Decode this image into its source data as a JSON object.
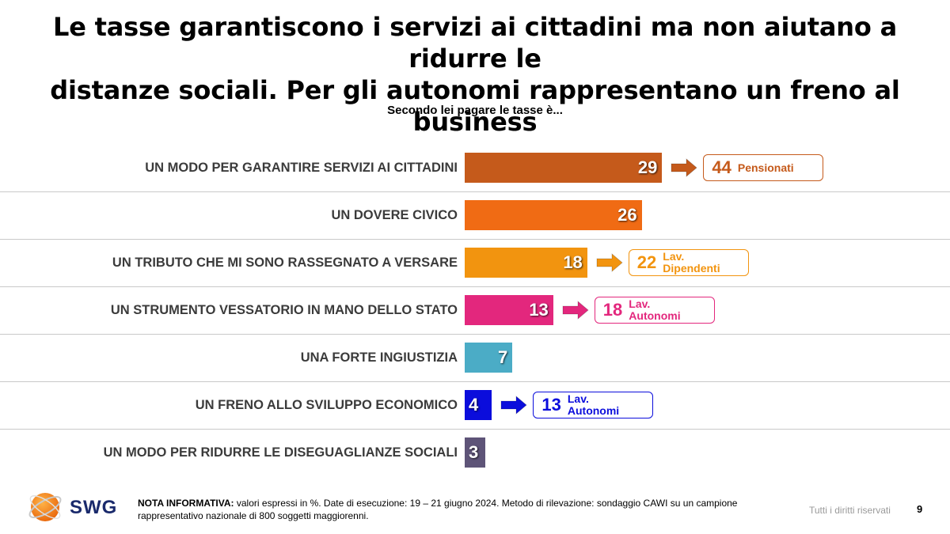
{
  "title_line1": "Le tasse garantiscono i servizi ai cittadini ma non aiutano a ridurre le",
  "title_line2": "distanze sociali. Per gli autonomi rappresentano un freno al business",
  "subtitle": "Secondo lei pagare le tasse è...",
  "chart_data": {
    "type": "bar",
    "orientation": "horizontal",
    "title": "Secondo lei pagare le tasse è...",
    "unit": "%",
    "categories": [
      "UN MODO PER GARANTIRE SERVIZI AI CITTADINI",
      "UN DOVERE CIVICO",
      "UN TRIBUTO CHE MI SONO RASSEGNATO A VERSARE",
      "UN STRUMENTO VESSATORIO IN MANO DELLO STATO",
      "UNA FORTE INGIUSTIZIA",
      "UN FRENO ALLO SVILUPPO ECONOMICO",
      "UN MODO PER RIDURRE LE DISEGUAGLIANZE SOCIALI"
    ],
    "values": [
      29,
      26,
      18,
      13,
      7,
      4,
      3
    ],
    "colors": [
      "#c55a1b",
      "#f06b14",
      "#f2940f",
      "#e3277d",
      "#4bacc6",
      "#0b0ddc",
      "#5e5478"
    ],
    "callouts": [
      {
        "row": 0,
        "value": 44,
        "label": "Pensionati",
        "color": "#c55a1b"
      },
      {
        "row": 2,
        "value": 22,
        "label": "Lav. Dipendenti",
        "color": "#f2940f"
      },
      {
        "row": 3,
        "value": 18,
        "label": "Lav. Autonomi",
        "color": "#e3277d"
      },
      {
        "row": 5,
        "value": 13,
        "label": "Lav. Autonomi",
        "color": "#0b0ddc"
      }
    ]
  },
  "footer": {
    "brand": "SWG",
    "note_label": "NOTA INFORMATIVA:",
    "note_text": " valori espressi in %. Date di esecuzione: 19 – 21 giugno 2024. Metodo di rilevazione: sondaggio CAWI su un campione rappresentativo nazionale di 800 soggetti maggiorenni.",
    "rights": "Tutti i diritti riservati",
    "page": "9"
  }
}
